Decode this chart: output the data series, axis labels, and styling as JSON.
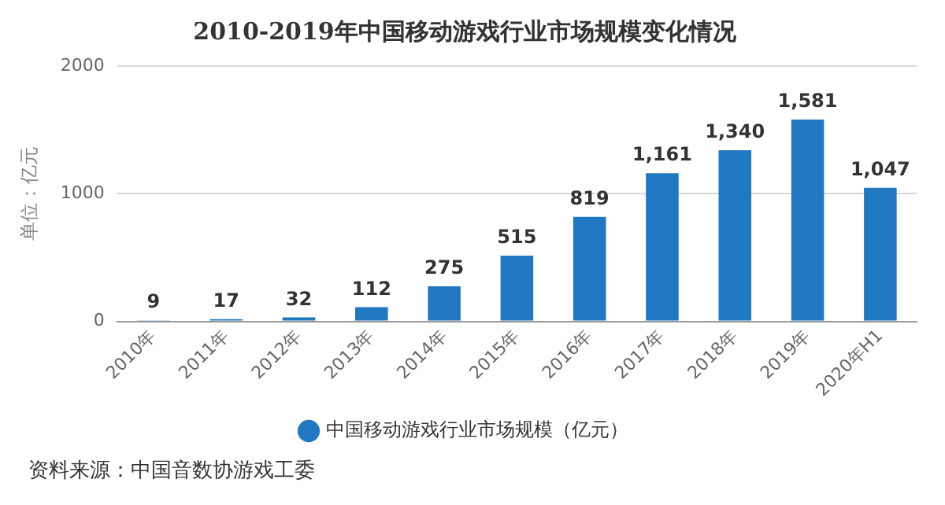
{
  "chart_data": {
    "type": "bar",
    "title": "2010-2019年中国移动游戏行业市场规模变化情况",
    "ylabel": "单位：亿元",
    "categories": [
      "2010年",
      "2011年",
      "2012年",
      "2013年",
      "2014年",
      "2015年",
      "2016年",
      "2017年",
      "2018年",
      "2019年",
      "2020年H1"
    ],
    "series": [
      {
        "name": "中国移动游戏行业市场规模（亿元）",
        "color": "#1f78c1",
        "values": [
          9,
          17,
          32,
          112,
          275,
          515,
          819,
          1161,
          1340,
          1581,
          1047
        ],
        "value_labels": [
          "9",
          "17",
          "32",
          "112",
          "275",
          "515",
          "819",
          "1,161",
          "1,340",
          "1,581",
          "1,047"
        ]
      }
    ],
    "ylim": [
      0,
      2000
    ],
    "yticks": [
      0,
      1000,
      2000
    ],
    "grid": "y",
    "legend": "bottom",
    "annotations": [
      "资料来源：中国音数协游戏工委"
    ]
  }
}
